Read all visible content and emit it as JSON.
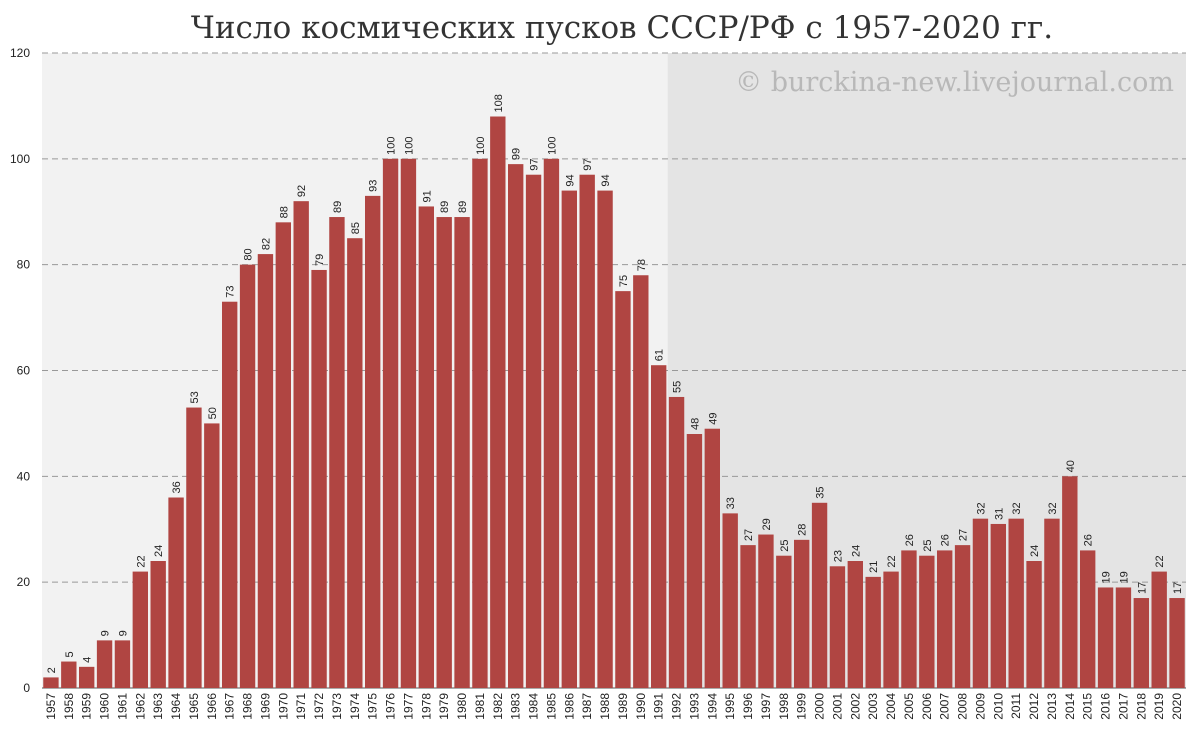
{
  "chart_data": {
    "type": "bar",
    "title": "Число космических пусков СССР/РФ с 1957-2020 гг.",
    "watermark": "© burckina-new.livejournal.com",
    "categories": [
      "1957",
      "1958",
      "1959",
      "1960",
      "1961",
      "1962",
      "1963",
      "1964",
      "1965",
      "1966",
      "1967",
      "1968",
      "1969",
      "1970",
      "1971",
      "1972",
      "1973",
      "1974",
      "1975",
      "1976",
      "1977",
      "1978",
      "1979",
      "1980",
      "1981",
      "1982",
      "1983",
      "1984",
      "1985",
      "1986",
      "1987",
      "1988",
      "1989",
      "1990",
      "1991",
      "1992",
      "1993",
      "1994",
      "1995",
      "1996",
      "1997",
      "1998",
      "1999",
      "2000",
      "2001",
      "2002",
      "2003",
      "2004",
      "2005",
      "2006",
      "2007",
      "2008",
      "2009",
      "2010",
      "2011",
      "2012",
      "2013",
      "2014",
      "2015",
      "2016",
      "2017",
      "2018",
      "2019",
      "2020"
    ],
    "values": [
      2,
      5,
      4,
      9,
      9,
      22,
      24,
      36,
      53,
      50,
      73,
      80,
      82,
      88,
      92,
      79,
      89,
      85,
      93,
      100,
      100,
      91,
      89,
      89,
      100,
      108,
      99,
      97,
      100,
      94,
      97,
      94,
      75,
      78,
      61,
      55,
      48,
      49,
      33,
      27,
      29,
      25,
      28,
      35,
      23,
      24,
      21,
      22,
      26,
      25,
      26,
      27,
      32,
      31,
      32,
      24,
      32,
      40,
      26,
      19,
      19,
      17,
      22,
      17
    ],
    "color": "#b04542",
    "shaded_region_start": "1992",
    "ylim": [
      0,
      120
    ],
    "yticks": [
      0,
      20,
      40,
      60,
      80,
      100,
      120
    ],
    "grid": true
  }
}
